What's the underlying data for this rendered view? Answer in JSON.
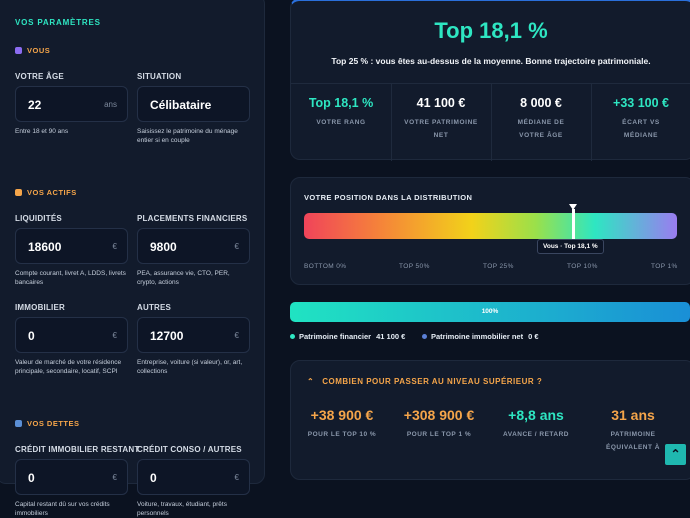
{
  "sidebar": {
    "title": "VOS PARAMÈTRES",
    "sections": [
      {
        "title": "VOUS",
        "fields": [
          {
            "label": "VOTRE ÂGE",
            "value": "22",
            "unit": "ans",
            "hint": "Entre 18 et 90 ans"
          },
          {
            "label": "SITUATION",
            "value": "Célibataire",
            "hint": "Saisissez le patrimoine du ménage entier si en couple"
          }
        ]
      },
      {
        "title": "VOS ACTIFS",
        "fields": [
          {
            "label": "LIQUIDITÉS",
            "value": "18600",
            "unit": "€",
            "hint": "Compte courant, livret A, LDDS, livrets bancaires"
          },
          {
            "label": "PLACEMENTS FINANCIERS",
            "value": "9800",
            "unit": "€",
            "hint": "PEA, assurance vie, CTO, PER, crypto, actions"
          },
          {
            "label": "IMMOBILIER",
            "value": "0",
            "unit": "€",
            "hint": "Valeur de marché de votre résidence principale, secondaire, locatif, SCPI"
          },
          {
            "label": "AUTRES",
            "value": "12700",
            "unit": "€",
            "hint": "Entreprise, voiture (si valeur), or, art, collections"
          }
        ]
      },
      {
        "title": "VOS DETTES",
        "fields": [
          {
            "label": "CRÉDIT IMMOBILIER RESTANT",
            "value": "0",
            "unit": "€",
            "hint": "Capital restant dû sur vos crédits immobiliers"
          },
          {
            "label": "CRÉDIT CONSO / AUTRES",
            "value": "0",
            "unit": "€",
            "hint": "Voiture, travaux, étudiant, prêts personnels"
          }
        ]
      }
    ]
  },
  "result": {
    "headline": "Top 18,1 %",
    "subtitle": "Top 25 % : vous êtes au-dessus de la moyenne. Bonne trajectoire patrimoniale.",
    "stats": [
      {
        "value": "Top 18,1 %",
        "label": "VOTRE RANG"
      },
      {
        "value": "41 100 €",
        "label": "VOTRE PATRIMOINE NET"
      },
      {
        "value": "8 000 €",
        "label": "MÉDIANE DE VOTRE ÂGE"
      },
      {
        "value": "+33 100 €",
        "label": "ÉCART VS MÉDIANE"
      }
    ]
  },
  "distribution": {
    "title": "VOTRE POSITION DANS LA DISTRIBUTION",
    "marker": "Vous · Top 18,1 %",
    "scale": [
      "BOTTOM 0%",
      "TOP 50%",
      "TOP 25%",
      "TOP 10%",
      "TOP 1%"
    ]
  },
  "composition": {
    "bar_label": "100%",
    "legend": [
      {
        "name": "Patrimoine financier",
        "value": "41 100 €"
      },
      {
        "name": "Patrimoine immobilier net",
        "value": "0 €"
      }
    ]
  },
  "next_level": {
    "title": "COMBIEN POUR PASSER AU NIVEAU SUPÉRIEUR ?",
    "stats": [
      {
        "value": "+38 900 €",
        "label": "POUR LE TOP 10 %"
      },
      {
        "value": "+308 900 €",
        "label": "POUR LE TOP 1 %"
      },
      {
        "value": "+8,8 ans",
        "label": "AVANCE / RETARD"
      },
      {
        "value": "31 ans",
        "label": "PATRIMOINE ÉQUIVALENT À"
      }
    ]
  }
}
